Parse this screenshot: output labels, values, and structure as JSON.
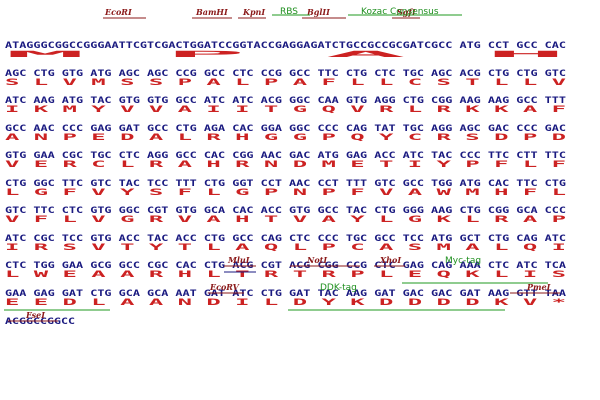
{
  "sequence": {
    "dna_lines": [
      "ATAGGGCGGCCGGGAATTCGTCGACTGGATCCGGTACCGAGGAGATCTGCCGCCGCGATCGCC ATG CCT GCC CAC",
      "AGC CTG GTG ATG AGC AGC CCG GCC CTC CCG GCC TTC CTG CTC TGC AGC ACG CTG CTG GTC",
      "ATC AAG ATG TAC GTG GTG GCC ATC ATC ACG GGC CAA GTG AGG CTG CGG AAG AAG GCC TTT",
      "GCC AAC CCC GAG GAT GCC CTG AGA CAC GGA GGC CCC CAG TAT TGC AGG AGC GAC CCC GAC",
      "GTG GAA CGC TGC CTC AGG GCC CAC CGG AAC GAC ATG GAG ACC ATC TAC CCC TTC CTT TTC",
      "CTG GGC TTC GTC TAC TCC TTT CTG GGT CCT AAC CCT TTT GTC GCC TGG ATG CAC TTC CTG",
      "GTC TTC CTC GTG GGC CGT GTG GCA CAC ACC GTG GCC TAC CTG GGG AAG CTG CGG GCA CCC",
      "ATC CGC TCC GTG ACC TAC ACC CTG GCC CAG CTC CCC TGC GCC TCC ATG GCT CTG CAG ATC",
      "CTC TGG GAA GCG GCC CGC CAC CTG ACG CGT ACG CGG CCG CTC GAG CAG AAA CTC ATC TCA",
      "GAA GAG GAT CTG GCA GCA AAT GAT ATC CTG GAT TAC AAG GAT GAC GAC GAT AAG GTT TAA",
      "ACGGCCGGCC"
    ],
    "aa_lines": [
      "                                                                 M   P   A   H",
      " S   L   V   M   S   S   P   A   L   P   A   F   L   L   C   S   T   L   L   V",
      " I   K   M   Y   V   V   A   I   I   T   G   Q   V   R   L   R   K   K   A   F",
      " A   N   P   E   D   A   L   R   H   G   G   P   Q   Y   C   R   S   D   P   D",
      " V   E   R   C   L   R   A   H   R   N   D   M   E   T   I   Y   P   F   L   F",
      " L   G   F   V   Y   S   F   L   G   P   N   P   F   V   A   W   M   H   F   L",
      " V   F   L   V   G   R   V   A   H   T   V   A   Y   L   G   K   L   R   A   P",
      " I   R   S   V   T   Y   T   L   A   Q   L   P   C   A   S   M   A   L   Q   I",
      " L   W   E   A   A   R   H   L   T   R   T   R   P   L   E   Q   K   L   I   S",
      " E   E   D   L   A   A   N   D   I   L   D   Y   K   D   D   D   D   K   V   *",
      ""
    ]
  },
  "annotations": {
    "restriction_sites": [
      "EcoRI",
      "BamHI",
      "KpnI",
      "BglII",
      "SgfI",
      "MluI",
      "NotI",
      "XhoI",
      "EcoRV",
      "PmeI",
      "FseI"
    ],
    "features": [
      "RBS",
      "Kozac Consensus",
      "Myc-tag",
      "DDK-tag"
    ]
  },
  "colors": {
    "dna": "#1a1a80",
    "amino_acid": "#cc2222",
    "restriction_site": "#8b1a1a",
    "feature": "#1f8f1f"
  }
}
